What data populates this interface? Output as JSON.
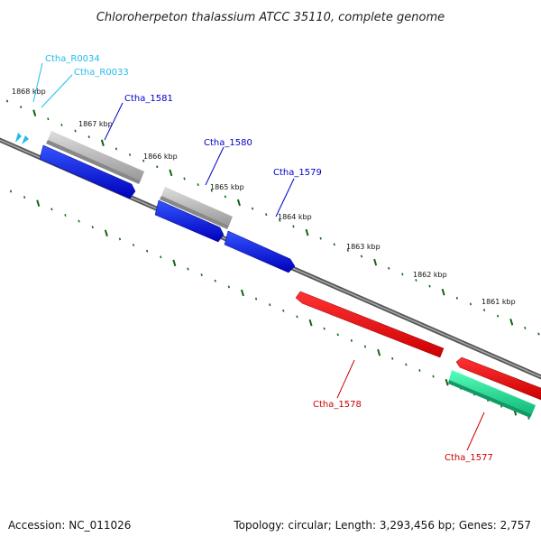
{
  "title": "Chloroherpeton thalassium ATCC 35110, complete genome",
  "footer": {
    "accession": "Accession: NC_011026",
    "summary": "Topology: circular; Length: 3,293,456 bp; Genes: 2,757"
  },
  "scale": {
    "labels": [
      "1868 kbp",
      "1867 kbp",
      "1866 kbp",
      "1865 kbp",
      "1864 kbp",
      "1863 kbp",
      "1862 kbp",
      "1861 kbp"
    ]
  },
  "genes": [
    {
      "name": "Ctha_R0034",
      "strand": "forward",
      "type": "RNA",
      "color": "#33ccee"
    },
    {
      "name": "Ctha_R0033",
      "strand": "forward",
      "type": "RNA",
      "color": "#33ccee"
    },
    {
      "name": "Ctha_1581",
      "strand": "forward",
      "type": "CDS",
      "color": "#0000cc"
    },
    {
      "name": "Ctha_1580",
      "strand": "forward",
      "type": "CDS",
      "color": "#0000cc"
    },
    {
      "name": "Ctha_1579",
      "strand": "forward",
      "type": "CDS",
      "color": "#0000cc"
    },
    {
      "name": "Ctha_1578",
      "strand": "reverse",
      "type": "CDS",
      "color": "#cc0000"
    },
    {
      "name": "Ctha_1577",
      "strand": "reverse",
      "type": "CDS",
      "color": "#cc0000"
    }
  ],
  "colors": {
    "forward_cds": "#0000dd",
    "reverse_cds": "#ee0000",
    "rna": "#22bbee",
    "gray_feature": "#bbbbbb",
    "green_feature": "#22ee99",
    "backbone": "#777777",
    "ticks": "#116611"
  }
}
